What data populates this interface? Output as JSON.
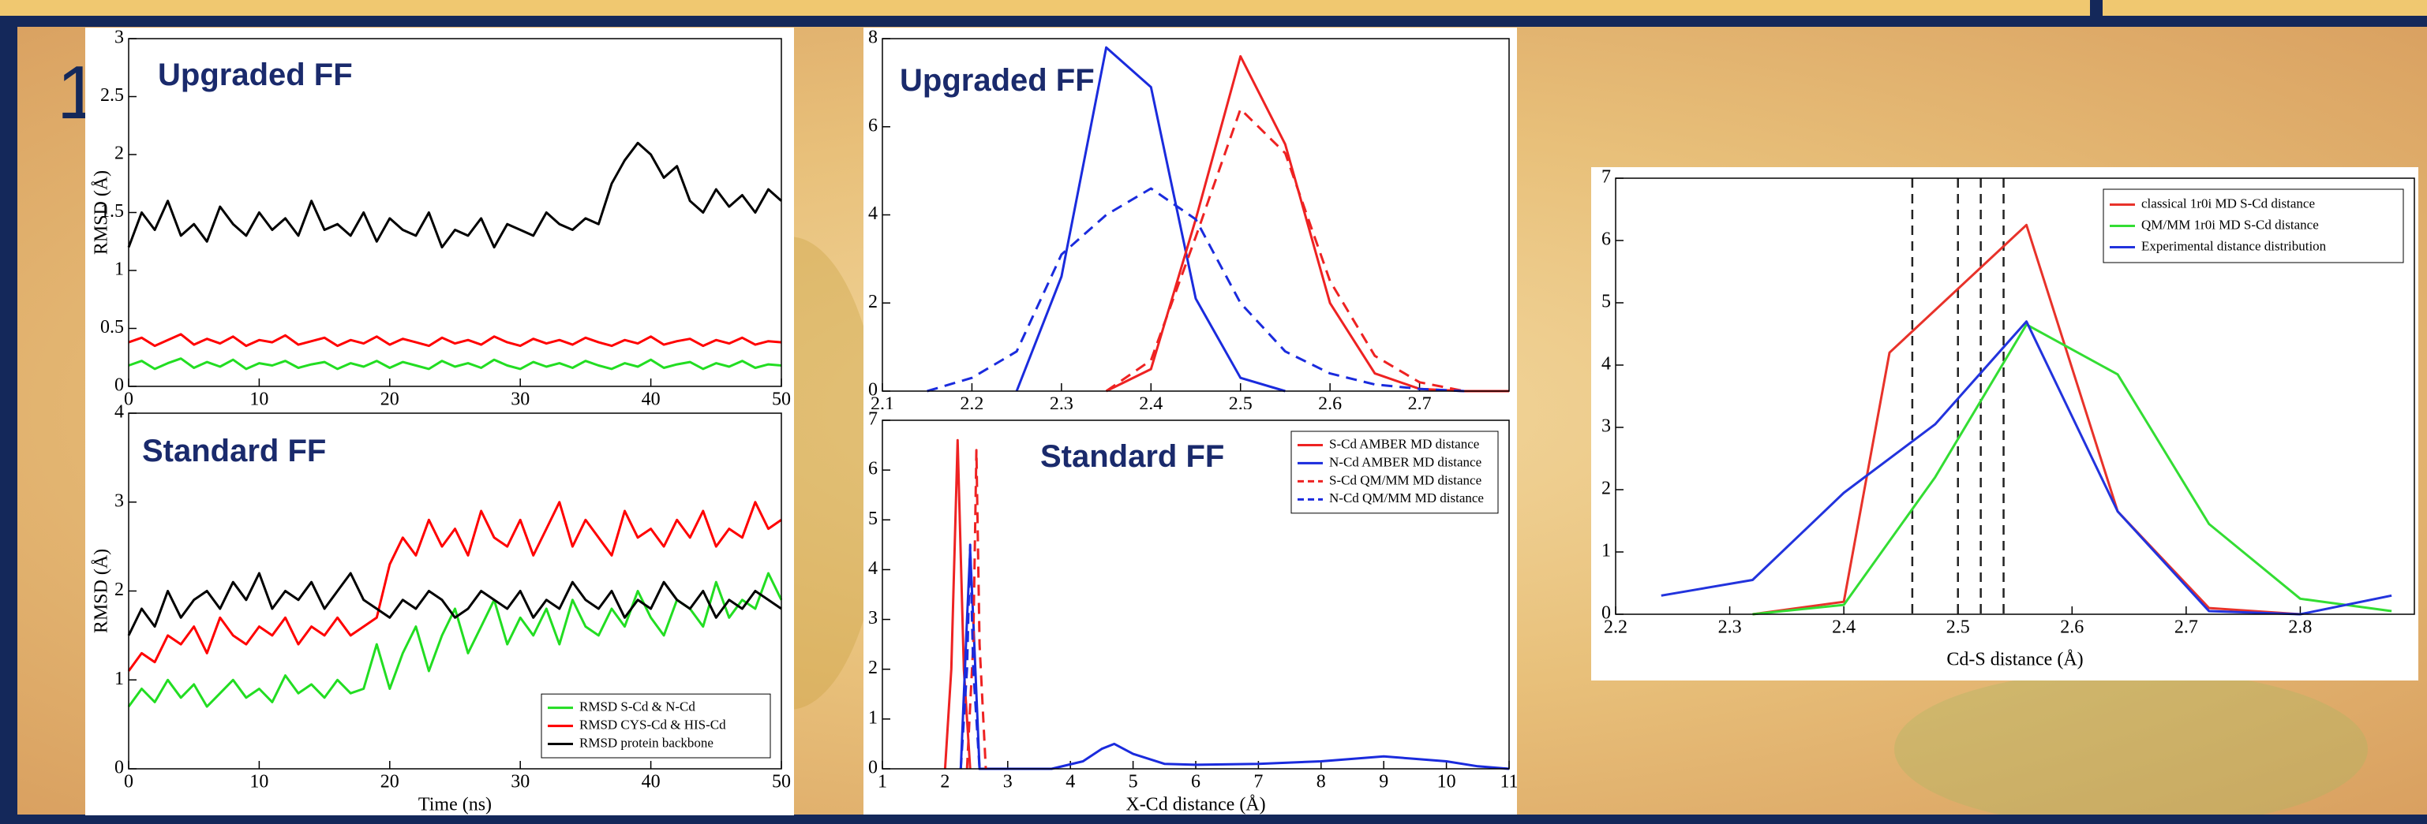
{
  "slide_label": "1",
  "chart_data": [
    {
      "type": "line",
      "annotation": "Upgraded FF",
      "ylabel": "RMSD (Å)",
      "x": [
        0,
        1,
        2,
        3,
        4,
        5,
        6,
        7,
        8,
        9,
        10,
        11,
        12,
        13,
        14,
        15,
        16,
        17,
        18,
        19,
        20,
        21,
        22,
        23,
        24,
        25,
        26,
        27,
        28,
        29,
        30,
        31,
        32,
        33,
        34,
        35,
        36,
        37,
        38,
        39,
        40,
        41,
        42,
        43,
        44,
        45,
        46,
        47,
        48,
        49,
        50
      ],
      "xlim": [
        0,
        50
      ],
      "xticks": [
        0,
        10,
        20,
        30,
        40,
        50
      ],
      "ylim": [
        0,
        3
      ],
      "yticks": [
        0,
        0.5,
        1,
        1.5,
        2,
        2.5,
        3
      ],
      "series": [
        {
          "color": "#000000",
          "values": [
            1.2,
            1.5,
            1.35,
            1.6,
            1.3,
            1.4,
            1.25,
            1.55,
            1.4,
            1.3,
            1.5,
            1.35,
            1.45,
            1.3,
            1.6,
            1.35,
            1.4,
            1.3,
            1.5,
            1.25,
            1.45,
            1.35,
            1.3,
            1.5,
            1.2,
            1.35,
            1.3,
            1.45,
            1.2,
            1.4,
            1.35,
            1.3,
            1.5,
            1.4,
            1.35,
            1.45,
            1.4,
            1.75,
            1.95,
            2.1,
            2.0,
            1.8,
            1.9,
            1.6,
            1.5,
            1.7,
            1.55,
            1.65,
            1.5,
            1.7,
            1.6
          ]
        },
        {
          "color": "#ff0000",
          "values": [
            0.38,
            0.42,
            0.35,
            0.4,
            0.45,
            0.36,
            0.41,
            0.37,
            0.43,
            0.35,
            0.4,
            0.38,
            0.44,
            0.36,
            0.39,
            0.42,
            0.35,
            0.4,
            0.37,
            0.43,
            0.36,
            0.41,
            0.38,
            0.35,
            0.42,
            0.37,
            0.4,
            0.36,
            0.43,
            0.38,
            0.35,
            0.41,
            0.37,
            0.4,
            0.36,
            0.42,
            0.38,
            0.35,
            0.4,
            0.37,
            0.43,
            0.36,
            0.39,
            0.41,
            0.35,
            0.4,
            0.37,
            0.42,
            0.36,
            0.39,
            0.38
          ]
        },
        {
          "color": "#22dd22",
          "values": [
            0.18,
            0.22,
            0.15,
            0.2,
            0.24,
            0.16,
            0.21,
            0.17,
            0.23,
            0.15,
            0.2,
            0.18,
            0.22,
            0.16,
            0.19,
            0.21,
            0.15,
            0.2,
            0.17,
            0.22,
            0.16,
            0.21,
            0.18,
            0.15,
            0.22,
            0.17,
            0.2,
            0.16,
            0.23,
            0.18,
            0.15,
            0.21,
            0.17,
            0.2,
            0.16,
            0.22,
            0.18,
            0.15,
            0.2,
            0.17,
            0.23,
            0.16,
            0.19,
            0.21,
            0.15,
            0.2,
            0.17,
            0.22,
            0.16,
            0.19,
            0.18
          ]
        }
      ]
    },
    {
      "type": "line",
      "annotation": "Standard FF",
      "ylabel": "RMSD (Å)",
      "xlabel": "Time (ns)",
      "x": [
        0,
        1,
        2,
        3,
        4,
        5,
        6,
        7,
        8,
        9,
        10,
        11,
        12,
        13,
        14,
        15,
        16,
        17,
        18,
        19,
        20,
        21,
        22,
        23,
        24,
        25,
        26,
        27,
        28,
        29,
        30,
        31,
        32,
        33,
        34,
        35,
        36,
        37,
        38,
        39,
        40,
        41,
        42,
        43,
        44,
        45,
        46,
        47,
        48,
        49,
        50
      ],
      "xlim": [
        0,
        50
      ],
      "xticks": [
        0,
        10,
        20,
        30,
        40,
        50
      ],
      "ylim": [
        0,
        4
      ],
      "yticks": [
        0,
        1,
        2,
        3,
        4
      ],
      "legend": "lower right",
      "series": [
        {
          "name": "RMSD S-Cd & N-Cd",
          "color": "#22dd22",
          "values": [
            0.7,
            0.9,
            0.75,
            1.0,
            0.8,
            0.95,
            0.7,
            0.85,
            1.0,
            0.8,
            0.9,
            0.75,
            1.05,
            0.85,
            0.95,
            0.8,
            1.0,
            0.85,
            0.9,
            1.4,
            0.9,
            1.3,
            1.6,
            1.1,
            1.5,
            1.8,
            1.3,
            1.6,
            1.9,
            1.4,
            1.7,
            1.5,
            1.8,
            1.4,
            1.9,
            1.6,
            1.5,
            1.8,
            1.6,
            2.0,
            1.7,
            1.5,
            1.9,
            1.8,
            1.6,
            2.1,
            1.7,
            1.9,
            1.8,
            2.2,
            1.9
          ]
        },
        {
          "name": "RMSD CYS-Cd & HIS-Cd",
          "color": "#ff0000",
          "values": [
            1.1,
            1.3,
            1.2,
            1.5,
            1.4,
            1.6,
            1.3,
            1.7,
            1.5,
            1.4,
            1.6,
            1.5,
            1.7,
            1.4,
            1.6,
            1.5,
            1.7,
            1.5,
            1.6,
            1.7,
            2.3,
            2.6,
            2.4,
            2.8,
            2.5,
            2.7,
            2.4,
            2.9,
            2.6,
            2.5,
            2.8,
            2.4,
            2.7,
            3.0,
            2.5,
            2.8,
            2.6,
            2.4,
            2.9,
            2.6,
            2.7,
            2.5,
            2.8,
            2.6,
            2.9,
            2.5,
            2.7,
            2.6,
            3.0,
            2.7,
            2.8
          ]
        },
        {
          "name": "RMSD protein backbone",
          "color": "#000000",
          "values": [
            1.5,
            1.8,
            1.6,
            2.0,
            1.7,
            1.9,
            2.0,
            1.8,
            2.1,
            1.9,
            2.2,
            1.8,
            2.0,
            1.9,
            2.1,
            1.8,
            2.0,
            2.2,
            1.9,
            1.8,
            1.7,
            1.9,
            1.8,
            2.0,
            1.9,
            1.7,
            1.8,
            2.0,
            1.9,
            1.8,
            2.0,
            1.7,
            1.9,
            1.8,
            2.1,
            1.9,
            1.8,
            2.0,
            1.7,
            1.9,
            1.8,
            2.1,
            1.9,
            1.8,
            2.0,
            1.7,
            1.9,
            1.8,
            2.0,
            1.9,
            1.8
          ]
        }
      ]
    },
    {
      "type": "line",
      "annotation": "Upgraded FF",
      "xlim": [
        2.1,
        2.8
      ],
      "xticks": [
        2.1,
        2.2,
        2.3,
        2.4,
        2.5,
        2.6,
        2.7
      ],
      "ylim": [
        0,
        8
      ],
      "yticks": [
        0,
        2,
        4,
        6,
        8
      ],
      "series": [
        {
          "color": "#1a2bdd",
          "dash": false,
          "x": [
            2.25,
            2.3,
            2.35,
            2.4,
            2.45,
            2.5,
            2.55
          ],
          "values": [
            0,
            2.6,
            7.8,
            6.9,
            2.1,
            0.3,
            0
          ]
        },
        {
          "color": "#ee2222",
          "dash": false,
          "x": [
            2.35,
            2.4,
            2.45,
            2.5,
            2.55,
            2.6,
            2.65,
            2.7,
            2.75,
            2.8
          ],
          "values": [
            0,
            0.5,
            3.9,
            7.6,
            5.6,
            2.0,
            0.4,
            0.05,
            0,
            0
          ]
        },
        {
          "color": "#ee2222",
          "dash": true,
          "x": [
            2.35,
            2.4,
            2.45,
            2.5,
            2.55,
            2.6,
            2.65,
            2.7,
            2.75,
            2.8
          ],
          "values": [
            0,
            0.7,
            3.5,
            6.4,
            5.4,
            2.5,
            0.8,
            0.2,
            0,
            0
          ]
        },
        {
          "color": "#1a2bdd",
          "dash": true,
          "x": [
            2.15,
            2.2,
            2.25,
            2.3,
            2.35,
            2.4,
            2.45,
            2.5,
            2.55,
            2.6,
            2.65,
            2.7,
            2.75
          ],
          "values": [
            0,
            0.3,
            0.9,
            3.1,
            4.0,
            4.6,
            3.9,
            2.0,
            0.9,
            0.4,
            0.15,
            0.05,
            0
          ]
        }
      ]
    },
    {
      "type": "line",
      "annotation": "Standard FF",
      "xlabel": "X-Cd distance (Å)",
      "xlim": [
        1,
        11
      ],
      "xticks": [
        1,
        2,
        3,
        4,
        5,
        6,
        7,
        8,
        9,
        10,
        11
      ],
      "ylim": [
        0,
        7
      ],
      "yticks": [
        0,
        1,
        2,
        3,
        4,
        5,
        6,
        7
      ],
      "legend": "upper right",
      "series": [
        {
          "name": "S-Cd AMBER MD distance",
          "color": "#ee2222",
          "dash": false,
          "x": [
            2.0,
            2.1,
            2.2,
            2.3,
            2.4
          ],
          "values": [
            0,
            2,
            6.6,
            2,
            0
          ]
        },
        {
          "name": "N-Cd AMBER MD distance",
          "color": "#1a2bdd",
          "dash": false,
          "x": [
            2.25,
            2.35,
            2.4,
            2.45,
            2.55,
            3.7,
            4.2,
            4.5,
            4.7,
            5.0,
            5.5,
            6,
            7,
            8,
            9,
            9.5,
            10,
            10.5,
            11
          ],
          "values": [
            0,
            3,
            4.4,
            3,
            0,
            0,
            0.15,
            0.4,
            0.5,
            0.3,
            0.1,
            0.08,
            0.1,
            0.15,
            0.25,
            0.2,
            0.15,
            0.05,
            0
          ]
        },
        {
          "name": "S-Cd QM/MM MD distance",
          "color": "#ee2222",
          "dash": true,
          "x": [
            2.35,
            2.45,
            2.5,
            2.55,
            2.65
          ],
          "values": [
            0,
            2.5,
            6.4,
            2.5,
            0
          ]
        },
        {
          "name": "N-Cd QM/MM MD distance",
          "color": "#1a2bdd",
          "dash": true,
          "x": [
            2.25,
            2.35,
            2.4,
            2.45,
            2.55
          ],
          "values": [
            0,
            2,
            4.5,
            2,
            0
          ]
        }
      ]
    },
    {
      "type": "line",
      "xlabel": "Cd-S distance (Å)",
      "xlim": [
        2.2,
        2.9
      ],
      "xticks": [
        2.2,
        2.3,
        2.4,
        2.5,
        2.6,
        2.7,
        2.8
      ],
      "ylim": [
        0,
        7
      ],
      "yticks": [
        0,
        1,
        2,
        3,
        4,
        5,
        6,
        7
      ],
      "legend": "upper right",
      "vlines": [
        2.46,
        2.5,
        2.52,
        2.54
      ],
      "series": [
        {
          "name": "classical 1r0i MD S-Cd distance",
          "color": "#e8322a",
          "x": [
            2.32,
            2.4,
            2.44,
            2.56,
            2.64,
            2.72,
            2.8
          ],
          "values": [
            0,
            0.2,
            4.2,
            6.25,
            1.65,
            0.1,
            0
          ]
        },
        {
          "name": "QM/MM 1r0i MD S-Cd distance",
          "color": "#33dd33",
          "x": [
            2.32,
            2.4,
            2.48,
            2.56,
            2.64,
            2.72,
            2.8,
            2.88
          ],
          "values": [
            0,
            0.15,
            2.2,
            4.65,
            3.85,
            1.45,
            0.25,
            0.05
          ]
        },
        {
          "name": "Experimental distance distribution",
          "color": "#2233dd",
          "x": [
            2.24,
            2.32,
            2.4,
            2.48,
            2.56,
            2.64,
            2.72,
            2.8,
            2.88
          ],
          "values": [
            0.3,
            0.55,
            1.95,
            3.05,
            4.7,
            1.65,
            0.05,
            0,
            0.3
          ]
        }
      ]
    }
  ]
}
